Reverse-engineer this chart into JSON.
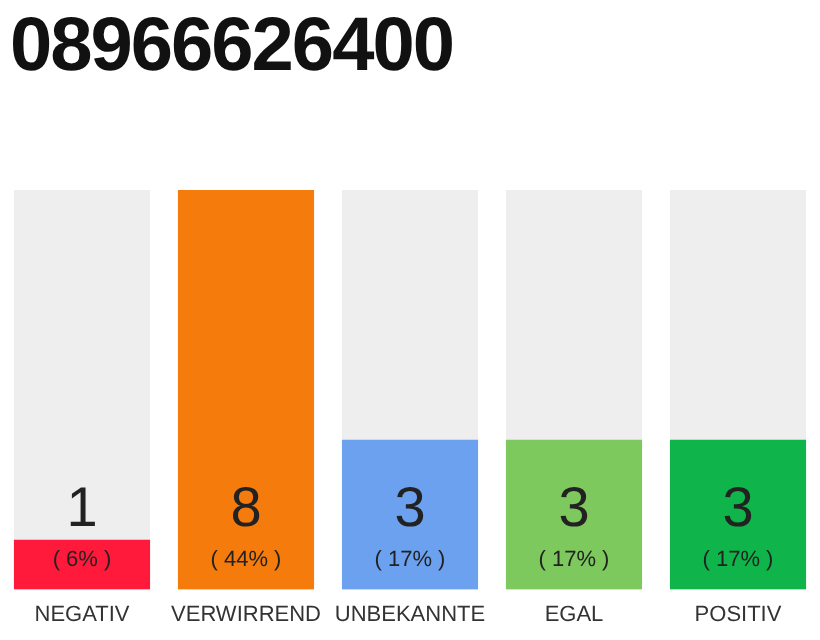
{
  "chart_data": {
    "type": "bar",
    "title": "08966626400",
    "categories": [
      "NEGATIV",
      "VERWIRREND",
      "UNBEKANNTE",
      "EGAL",
      "POSITIV"
    ],
    "values": [
      1,
      8,
      3,
      3,
      3
    ],
    "colors": [
      "#ff1a3c",
      "#f47b0c",
      "#6ba1ee",
      "#7ec95d",
      "#0fb54a"
    ],
    "value_labels": [
      "1 ( 6% )",
      "8 ( 44% )",
      "3 ( 17% )",
      "3 ( 17% )",
      "3 ( 17% )"
    ],
    "grid": false,
    "legend": false
  }
}
